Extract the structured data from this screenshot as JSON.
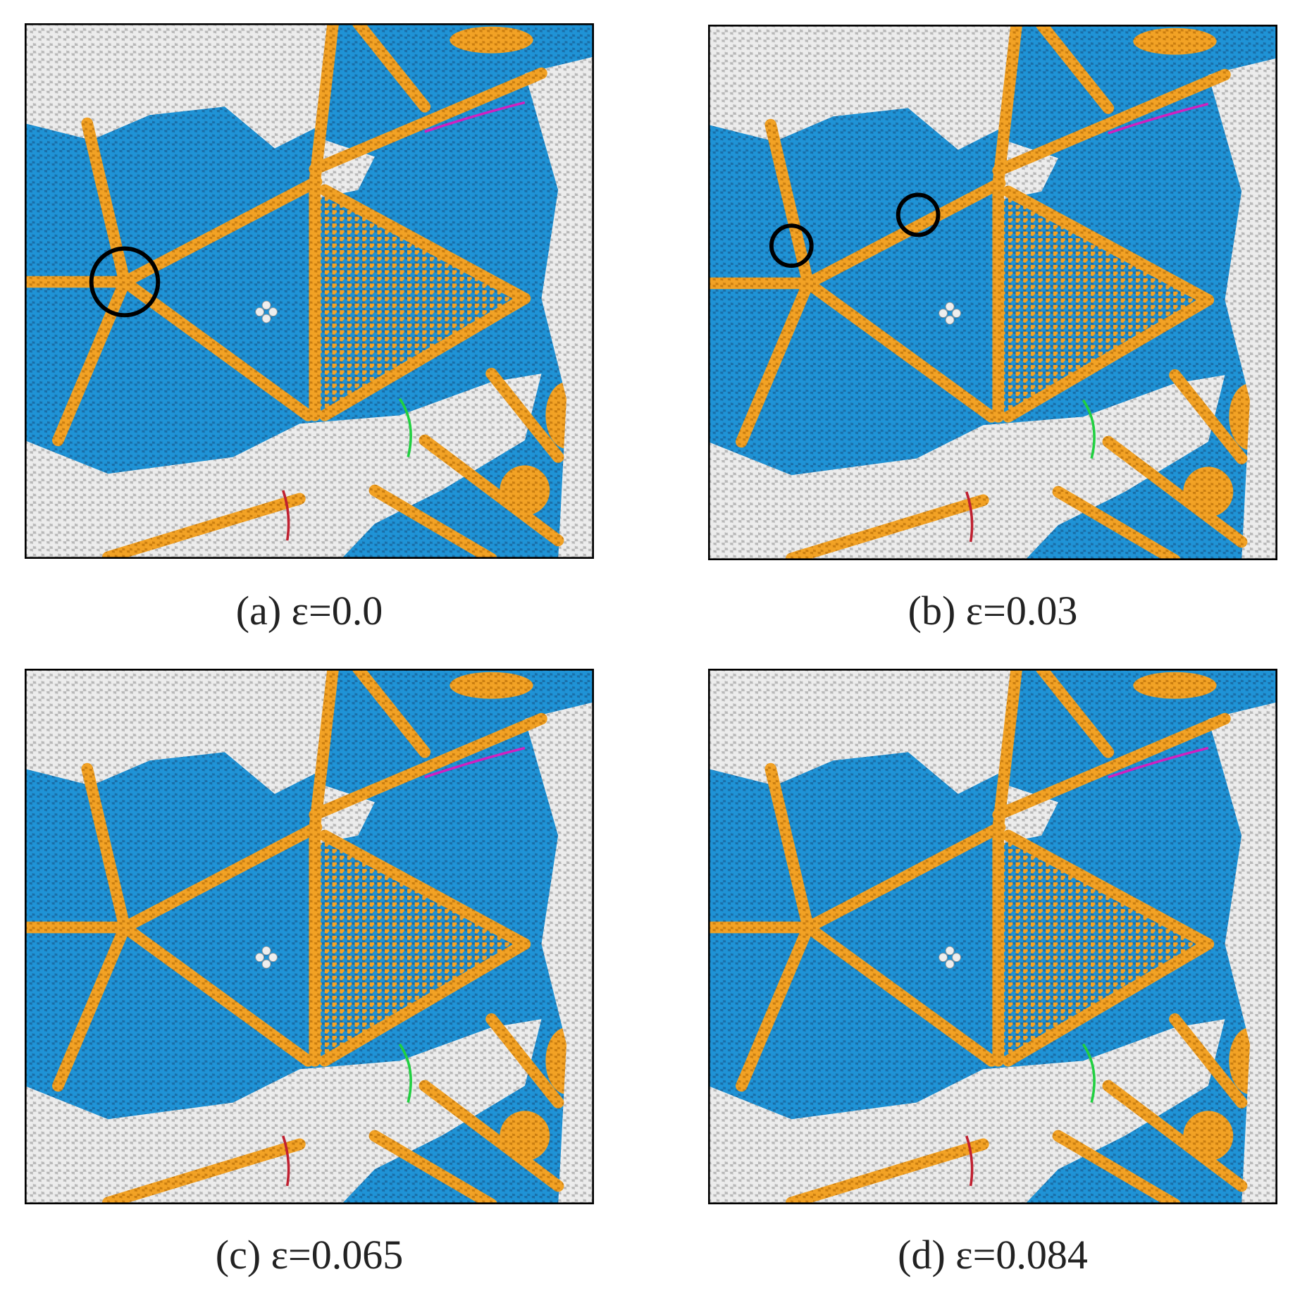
{
  "panels": [
    {
      "label": "(a) ε=0.0"
    },
    {
      "label": "(b) ε=0.03"
    },
    {
      "label": "(c) ε=0.065"
    },
    {
      "label": "(d) ε=0.084"
    }
  ]
}
